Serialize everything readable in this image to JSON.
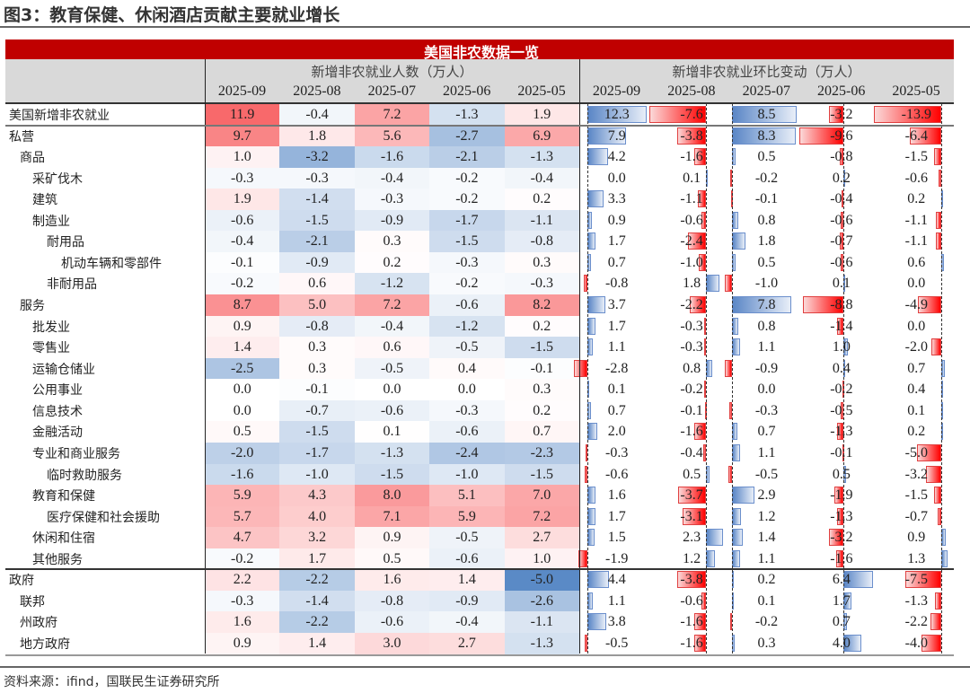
{
  "title": "图3：教育保健、休闲酒店贡献主要就业增长",
  "banner": "美国非农数据一览",
  "group_left": "新增非农就业人数（万人）",
  "group_right": "新增非农就业环比变动（万人）",
  "source": "资料来源：ifind，国联民生证券研究所",
  "colors": {
    "banner": "#c00000",
    "positive_heat": "#f8696b",
    "negative_heat": "#5a8ac6",
    "bar_positive": "#5a86c6",
    "bar_negative": "#ff0000"
  },
  "chart_data": {
    "type": "table",
    "columns": [
      "2025-09",
      "2025-08",
      "2025-07",
      "2025-06",
      "2025-05"
    ],
    "rows": [
      {
        "label": "美国新增非农就业",
        "level": 0,
        "count": [
          11.9,
          -0.4,
          7.2,
          -1.3,
          1.9
        ],
        "change": [
          12.3,
          -7.6,
          8.5,
          -3.2,
          -13.9
        ]
      },
      {
        "label": "私营",
        "level": 0,
        "count": [
          9.7,
          1.8,
          5.6,
          -2.7,
          6.9
        ],
        "change": [
          7.9,
          -3.8,
          8.3,
          -9.6,
          -6.4
        ]
      },
      {
        "label": "商品",
        "level": 1,
        "count": [
          1.0,
          -3.2,
          -1.6,
          -2.1,
          -1.3
        ],
        "change": [
          4.2,
          -1.6,
          0.5,
          -0.8,
          -1.5
        ]
      },
      {
        "label": "采矿伐木",
        "level": 2,
        "count": [
          -0.3,
          -0.3,
          -0.4,
          -0.2,
          -0.4
        ],
        "change": [
          0.0,
          0.1,
          -0.2,
          0.2,
          -0.6
        ]
      },
      {
        "label": "建筑",
        "level": 2,
        "count": [
          1.9,
          -1.4,
          -0.3,
          -0.2,
          0.2
        ],
        "change": [
          3.3,
          -1.1,
          -0.1,
          -0.4,
          0.2
        ]
      },
      {
        "label": "制造业",
        "level": 2,
        "count": [
          -0.6,
          -1.5,
          -0.9,
          -1.7,
          -1.1
        ],
        "change": [
          0.9,
          -0.6,
          0.8,
          -0.6,
          -1.1
        ]
      },
      {
        "label": "耐用品",
        "level": 3,
        "count": [
          -0.4,
          -2.1,
          0.3,
          -1.5,
          -0.8
        ],
        "change": [
          1.7,
          -2.4,
          1.8,
          -0.7,
          -1.1
        ]
      },
      {
        "label": "机动车辆和零部件",
        "level": 4,
        "count": [
          -0.1,
          -0.9,
          0.2,
          -0.3,
          0.3
        ],
        "change": [
          0.7,
          -1.0,
          0.5,
          -0.6,
          0.6
        ]
      },
      {
        "label": "非耐用品",
        "level": 3,
        "count": [
          -0.2,
          0.6,
          -1.2,
          -0.2,
          -0.3
        ],
        "change": [
          -0.8,
          1.8,
          -1.0,
          0.1,
          0.0
        ]
      },
      {
        "label": "服务",
        "level": 1,
        "count": [
          8.7,
          5.0,
          7.2,
          -0.6,
          8.2
        ],
        "change": [
          3.7,
          -2.2,
          7.8,
          -8.8,
          -4.9
        ]
      },
      {
        "label": "批发业",
        "level": 2,
        "count": [
          0.9,
          -0.8,
          -0.4,
          -1.2,
          0.2
        ],
        "change": [
          1.7,
          -0.3,
          0.8,
          -1.4,
          0.0
        ]
      },
      {
        "label": "零售业",
        "level": 2,
        "count": [
          1.4,
          0.3,
          0.6,
          -0.5,
          -1.5
        ],
        "change": [
          1.1,
          -0.3,
          1.1,
          1.0,
          -2.0
        ]
      },
      {
        "label": "运输仓储业",
        "level": 2,
        "count": [
          -2.5,
          0.3,
          -0.5,
          0.4,
          -0.1
        ],
        "change": [
          -2.8,
          0.8,
          -0.9,
          0.4,
          0.7
        ]
      },
      {
        "label": "公用事业",
        "level": 2,
        "count": [
          0.0,
          -0.1,
          0.0,
          0.0,
          0.3
        ],
        "change": [
          0.1,
          -0.2,
          0.0,
          -0.2,
          0.4
        ]
      },
      {
        "label": "信息技术",
        "level": 2,
        "count": [
          0.0,
          -0.7,
          -0.6,
          -0.3,
          0.2
        ],
        "change": [
          0.7,
          -0.1,
          -0.3,
          -0.5,
          0.1
        ]
      },
      {
        "label": "金融活动",
        "level": 2,
        "count": [
          0.5,
          -1.5,
          0.1,
          -0.6,
          0.7
        ],
        "change": [
          2.0,
          -1.6,
          0.7,
          -1.3,
          0.2
        ]
      },
      {
        "label": "专业和商业服务",
        "level": 2,
        "count": [
          -2.0,
          -1.7,
          -1.3,
          -2.4,
          -2.3
        ],
        "change": [
          -0.3,
          -0.4,
          1.1,
          -0.1,
          -5.0
        ]
      },
      {
        "label": "临时救助服务",
        "level": 3,
        "count": [
          -1.6,
          -1.0,
          -1.5,
          -1.0,
          -1.5
        ],
        "change": [
          -0.6,
          0.5,
          -0.5,
          0.5,
          -3.2
        ]
      },
      {
        "label": "教育和保健",
        "level": 2,
        "count": [
          5.9,
          4.3,
          8.0,
          5.1,
          7.0
        ],
        "change": [
          1.6,
          -3.7,
          2.9,
          -1.9,
          -1.5
        ]
      },
      {
        "label": "医疗保健和社会援助",
        "level": 3,
        "count": [
          5.7,
          4.0,
          7.1,
          5.9,
          7.2
        ],
        "change": [
          1.7,
          -3.1,
          1.2,
          -1.3,
          -0.7
        ]
      },
      {
        "label": "休闲和住宿",
        "level": 2,
        "count": [
          4.7,
          3.2,
          0.9,
          -0.5,
          2.7
        ],
        "change": [
          1.5,
          2.3,
          1.4,
          -3.2,
          0.9
        ]
      },
      {
        "label": "其他服务",
        "level": 2,
        "count": [
          -0.2,
          1.7,
          0.5,
          -0.6,
          1.0
        ],
        "change": [
          -1.9,
          1.2,
          1.1,
          -1.6,
          1.3
        ]
      },
      {
        "label": "政府",
        "level": 0,
        "count": [
          2.2,
          -2.2,
          1.6,
          1.4,
          -5.0
        ],
        "change": [
          4.4,
          -3.8,
          0.2,
          6.4,
          -7.5
        ]
      },
      {
        "label": "联邦",
        "level": 1,
        "count": [
          -0.3,
          -1.4,
          -0.8,
          -0.9,
          -2.6
        ],
        "change": [
          1.1,
          -0.6,
          0.1,
          1.7,
          -1.3
        ]
      },
      {
        "label": "州政府",
        "level": 1,
        "count": [
          1.6,
          -2.2,
          -0.6,
          -0.4,
          -1.1
        ],
        "change": [
          3.8,
          -1.6,
          -0.2,
          0.7,
          -2.2
        ]
      },
      {
        "label": "地方政府",
        "level": 1,
        "count": [
          0.9,
          1.4,
          3.0,
          2.7,
          -1.3
        ],
        "change": [
          -0.5,
          -1.6,
          0.3,
          4.0,
          -4.0
        ]
      }
    ]
  }
}
